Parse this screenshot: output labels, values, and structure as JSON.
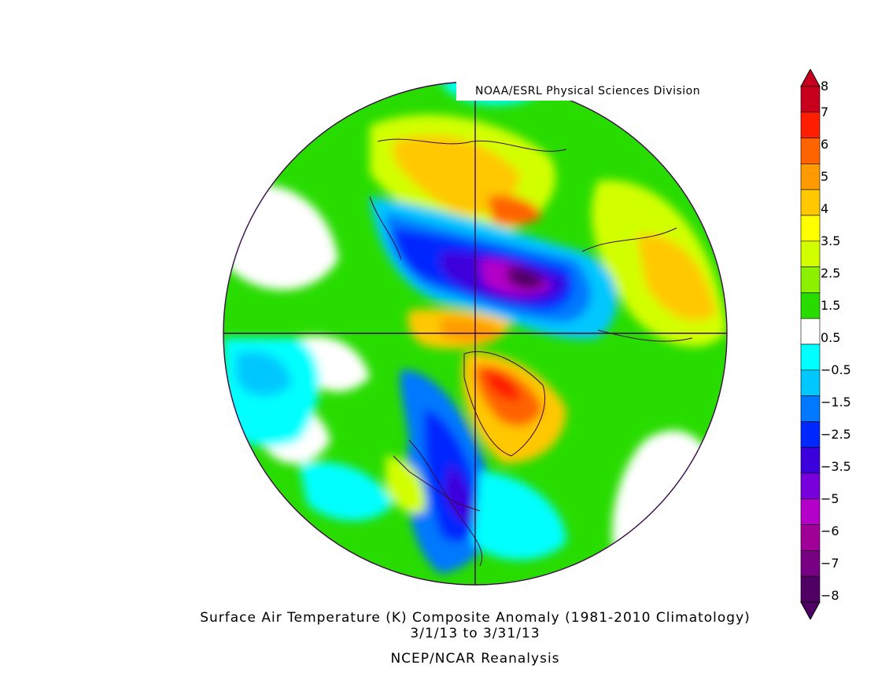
{
  "credit": "NOAA/ESRL Physical Sciences Division",
  "title": "Surface Air Temperature (K) Composite Anomaly (1981-2010 Climatology)",
  "date_range": "3/1/13   to 3/31/13",
  "source": "NCEP/NCAR Reanalysis",
  "colorbar": {
    "labels": [
      "8",
      "7",
      "6",
      "5",
      "4",
      "3.5",
      "2.5",
      "1.5",
      "0.5",
      "-0.5",
      "-1.5",
      "-2.5",
      "-3.5",
      "-5",
      "-6",
      "-7",
      "-8"
    ],
    "colors": [
      "#c8001e",
      "#ff1e00",
      "#ff6400",
      "#ff9b00",
      "#ffc800",
      "#ffff00",
      "#d2ff00",
      "#8cf000",
      "#28dc00",
      "#ffffff",
      "#00ffff",
      "#00c8ff",
      "#0078ff",
      "#0028ff",
      "#3c00dc",
      "#7800dc",
      "#b400c8",
      "#a00096",
      "#780082",
      "#500064"
    ]
  },
  "projection": "north-polar-stereographic"
}
